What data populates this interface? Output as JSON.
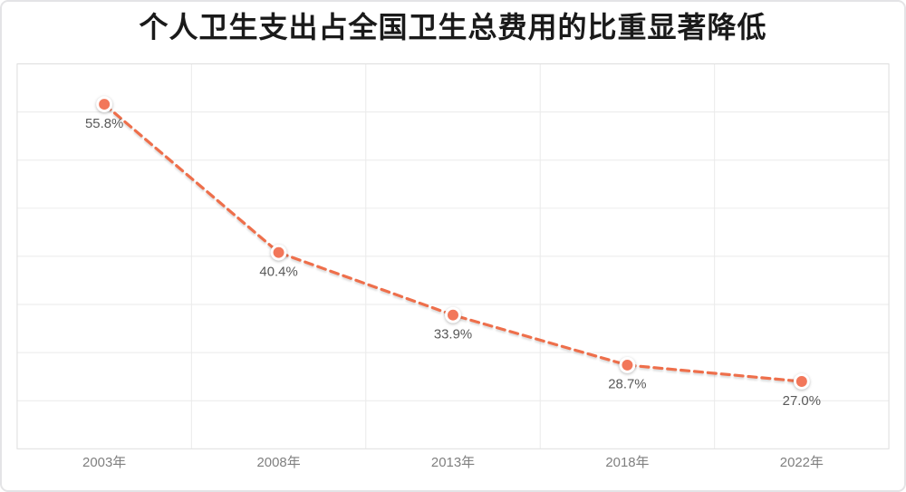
{
  "window": {
    "background": "#ffffff",
    "border_color": "#e4e4e6"
  },
  "chart_data": {
    "type": "line",
    "title": "个人卫生支出占全国卫生总费用的比重显著降低",
    "categories": [
      "2003年",
      "2008年",
      "2013年",
      "2018年",
      "2022年"
    ],
    "values": [
      55.8,
      40.4,
      33.9,
      28.7,
      27.0
    ],
    "point_labels": [
      "55.8%",
      "40.4%",
      "33.9%",
      "28.7%",
      "27.0%"
    ],
    "xlabel": "",
    "ylabel": "",
    "ylim": [
      20,
      60
    ],
    "y_step": 5,
    "y_tick_labels_visible": false,
    "grid": "on",
    "legend": "none",
    "line_style": "dashed",
    "marker": "circle",
    "colors": {
      "line": "#ee6f4b",
      "marker": "#f2775a",
      "marker_ring": "#ffffff",
      "data_label": "#595959",
      "axis_label": "#7f7f7f",
      "gridline": "#eaeaea",
      "plot_border": "#dedede",
      "title": "#1a1a1a"
    }
  }
}
